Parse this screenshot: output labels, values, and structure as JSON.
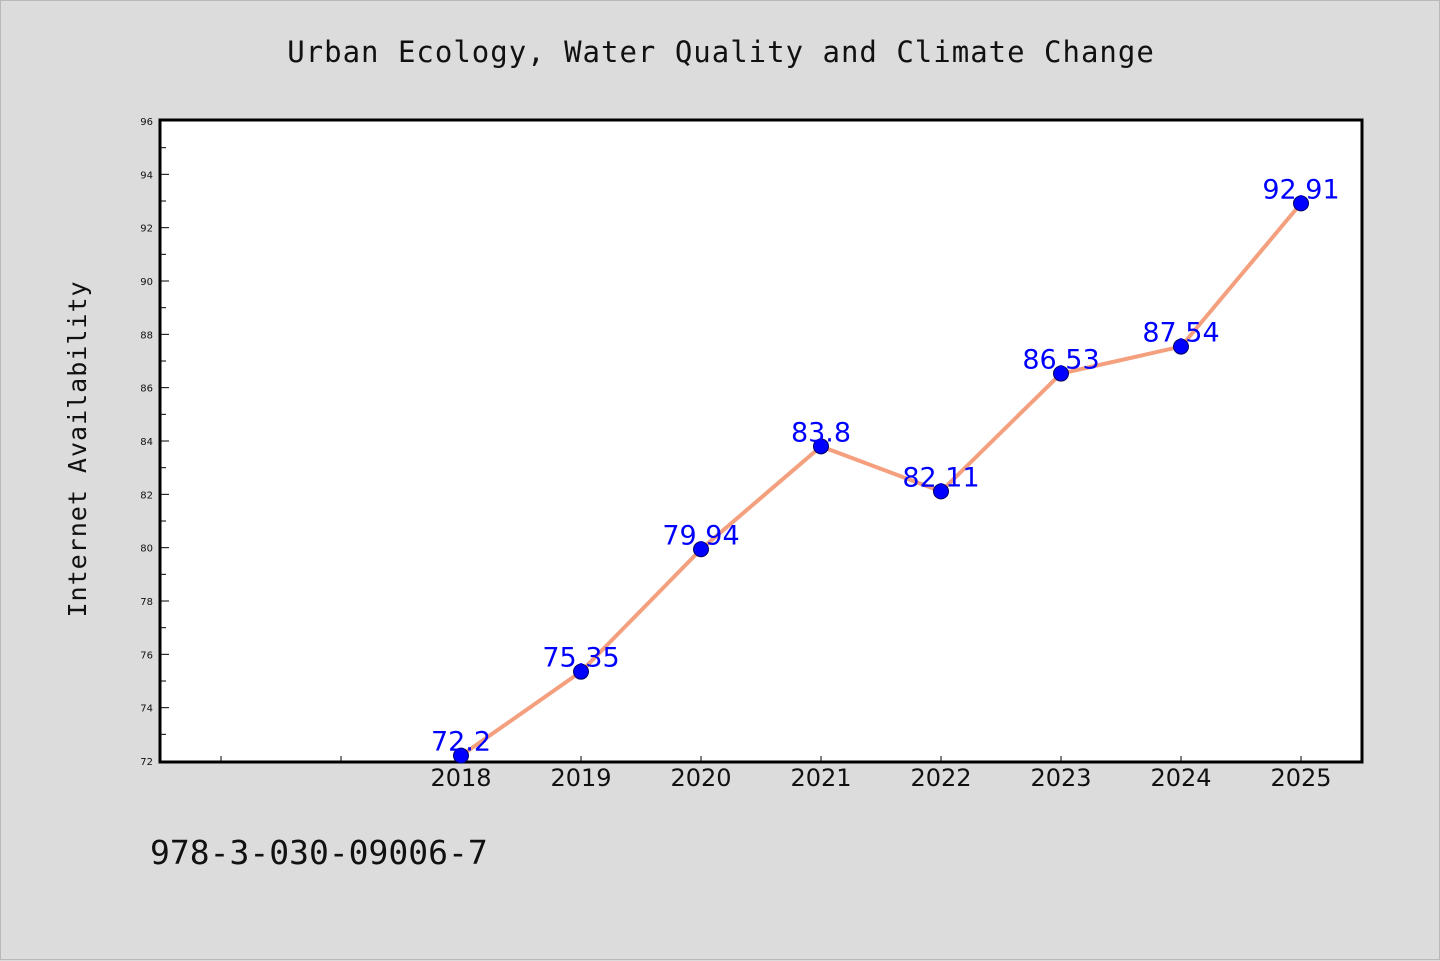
{
  "chart_data": {
    "type": "line",
    "title": "Urban Ecology, Water Quality and Climate Change",
    "xlabel": "",
    "ylabel": "Internet Availability",
    "categories": [
      "2018",
      "2019",
      "2020",
      "2021",
      "2022",
      "2023",
      "2024",
      "2025"
    ],
    "series": [
      {
        "values": [
          72.2,
          75.35,
          79.94,
          83.8,
          82.11,
          86.53,
          87.54,
          92.91
        ],
        "line_color": "#f4a07e",
        "marker_color": "#0000ff"
      }
    ],
    "data_labels": [
      "72.2",
      "75.35",
      "79.94",
      "83.8",
      "82.11",
      "86.53",
      "87.54",
      "92.91"
    ],
    "ylim": [
      72,
      96
    ],
    "yticks": [
      "72",
      "74",
      "76",
      "78",
      "80",
      "82",
      "84",
      "86",
      "88",
      "90",
      "92",
      "94",
      "96"
    ],
    "x_axis_slots": 10,
    "grid": false,
    "legend": "none"
  },
  "footer": {
    "isbn": "978-3-030-09006-7"
  },
  "colors": {
    "background": "#dcdcdc",
    "plot_background": "#ffffff",
    "axis": "#000000"
  }
}
